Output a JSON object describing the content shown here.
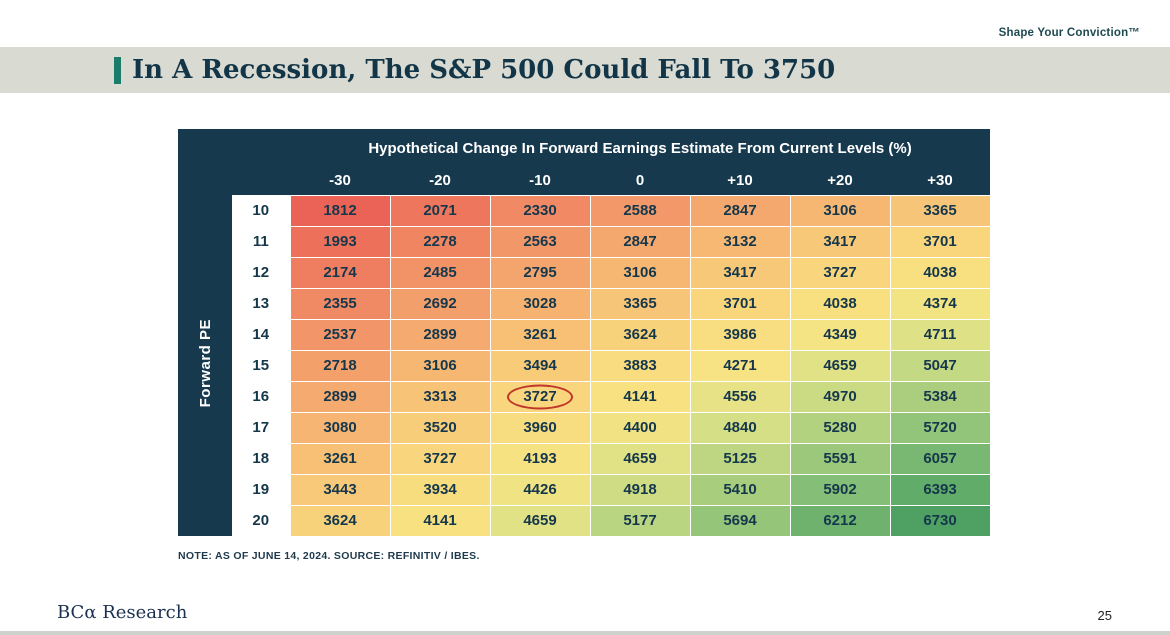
{
  "header": {
    "tagline": "Shape Your Conviction™",
    "title": "In A Recession, The S&P 500 Could Fall To 3750"
  },
  "chart_data": {
    "type": "heatmap",
    "title": "Hypothetical Change In Forward Earnings Estimate From Current Levels (%)",
    "row_axis_label": "Forward PE",
    "columns": [
      "-30",
      "-20",
      "-10",
      "0",
      "+10",
      "+20",
      "+30"
    ],
    "rows": [
      {
        "pe": "10",
        "values": [
          1812,
          2071,
          2330,
          2588,
          2847,
          3106,
          3365
        ]
      },
      {
        "pe": "11",
        "values": [
          1993,
          2278,
          2563,
          2847,
          3132,
          3417,
          3701
        ]
      },
      {
        "pe": "12",
        "values": [
          2174,
          2485,
          2795,
          3106,
          3417,
          3727,
          4038
        ]
      },
      {
        "pe": "13",
        "values": [
          2355,
          2692,
          3028,
          3365,
          3701,
          4038,
          4374
        ]
      },
      {
        "pe": "14",
        "values": [
          2537,
          2899,
          3261,
          3624,
          3986,
          4349,
          4711
        ]
      },
      {
        "pe": "15",
        "values": [
          2718,
          3106,
          3494,
          3883,
          4271,
          4659,
          5047
        ]
      },
      {
        "pe": "16",
        "values": [
          2899,
          3313,
          3727,
          4141,
          4556,
          4970,
          5384
        ]
      },
      {
        "pe": "17",
        "values": [
          3080,
          3520,
          3960,
          4400,
          4840,
          5280,
          5720
        ]
      },
      {
        "pe": "18",
        "values": [
          3261,
          3727,
          4193,
          4659,
          5125,
          5591,
          6057
        ]
      },
      {
        "pe": "19",
        "values": [
          3443,
          3934,
          4426,
          4918,
          5410,
          5902,
          6393
        ]
      },
      {
        "pe": "20",
        "values": [
          3624,
          4141,
          4659,
          5177,
          5694,
          6212,
          6730
        ]
      }
    ],
    "highlight": {
      "row_pe": "16",
      "column": "-10",
      "value": 3727,
      "circle_color": "#c0362a"
    },
    "color_scale": {
      "min": 1812,
      "max": 6730,
      "stops": [
        [
          1812,
          "#eb6357"
        ],
        [
          2300,
          "#f08763"
        ],
        [
          2800,
          "#f4a56d"
        ],
        [
          3300,
          "#f7c276"
        ],
        [
          3800,
          "#f9da7e"
        ],
        [
          4300,
          "#f7e483"
        ],
        [
          4800,
          "#d8e086"
        ],
        [
          5300,
          "#b0d17f"
        ],
        [
          5800,
          "#8cc278"
        ],
        [
          6300,
          "#68af6c"
        ],
        [
          6730,
          "#4ea163"
        ]
      ]
    },
    "header_bg": "#17394e",
    "text_color": "#15374b"
  },
  "footnote": "NOTE: AS OF JUNE 14, 2024. SOURCE: REFINITIV / IBES.",
  "footer": {
    "logo": "BCα Research",
    "page_number": "25"
  },
  "accent_color": "#1a7c6b"
}
